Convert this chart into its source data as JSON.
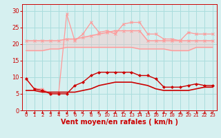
{
  "x": [
    0,
    1,
    2,
    3,
    4,
    5,
    6,
    7,
    8,
    9,
    10,
    11,
    12,
    13,
    14,
    15,
    16,
    17,
    18,
    19,
    20,
    21,
    22,
    23
  ],
  "wind_gust": [
    9.5,
    6.5,
    6.5,
    5.0,
    5.0,
    29.0,
    21.0,
    23.0,
    26.5,
    23.5,
    24.0,
    23.0,
    26.0,
    26.5,
    26.5,
    23.0,
    23.0,
    21.5,
    21.5,
    21.0,
    23.5,
    23.0,
    23.0,
    23.0
  ],
  "wind_avg_upper": [
    21.0,
    21.0,
    21.0,
    21.0,
    21.0,
    21.5,
    21.5,
    22.0,
    22.5,
    23.0,
    23.5,
    24.0,
    24.0,
    24.0,
    24.0,
    21.0,
    21.0,
    21.0,
    21.0,
    21.0,
    21.0,
    21.0,
    21.0,
    21.0
  ],
  "wind_avg_lower": [
    18.0,
    18.0,
    18.0,
    18.5,
    18.5,
    19.0,
    19.0,
    19.0,
    19.0,
    19.0,
    19.0,
    19.0,
    19.0,
    19.0,
    18.5,
    18.5,
    18.5,
    18.5,
    18.0,
    18.0,
    18.0,
    19.0,
    19.0,
    19.0
  ],
  "wind_current": [
    9.5,
    6.5,
    6.0,
    5.0,
    5.0,
    5.0,
    7.5,
    8.5,
    10.5,
    11.5,
    11.5,
    11.5,
    11.5,
    11.5,
    10.5,
    10.5,
    9.5,
    7.0,
    7.0,
    7.0,
    7.5,
    8.0,
    7.5,
    7.5
  ],
  "wind_smooth": [
    6.0,
    6.0,
    5.5,
    5.5,
    5.5,
    5.5,
    5.5,
    6.0,
    6.5,
    7.5,
    8.0,
    8.5,
    8.5,
    8.5,
    8.0,
    7.5,
    6.5,
    6.0,
    6.0,
    6.0,
    6.0,
    6.5,
    7.0,
    7.0
  ],
  "bg_color": "#d6f0f0",
  "grid_color": "#aadddd",
  "line_gust_color": "#ff9999",
  "line_avg_color": "#ff9999",
  "line_current_color": "#cc0000",
  "line_smooth_color": "#cc0000",
  "arrow_color": "#cc0000",
  "xlabel": "Vent moyen/en rafales ( km/h )",
  "ylim": [
    0,
    32
  ],
  "yticks": [
    0,
    5,
    10,
    15,
    20,
    25,
    30
  ],
  "wind_dirs": [
    270,
    270,
    270,
    270,
    270,
    270,
    90,
    45,
    90,
    45,
    45,
    90,
    45,
    45,
    270,
    315,
    270,
    90,
    45,
    270,
    45,
    315,
    270,
    45
  ]
}
